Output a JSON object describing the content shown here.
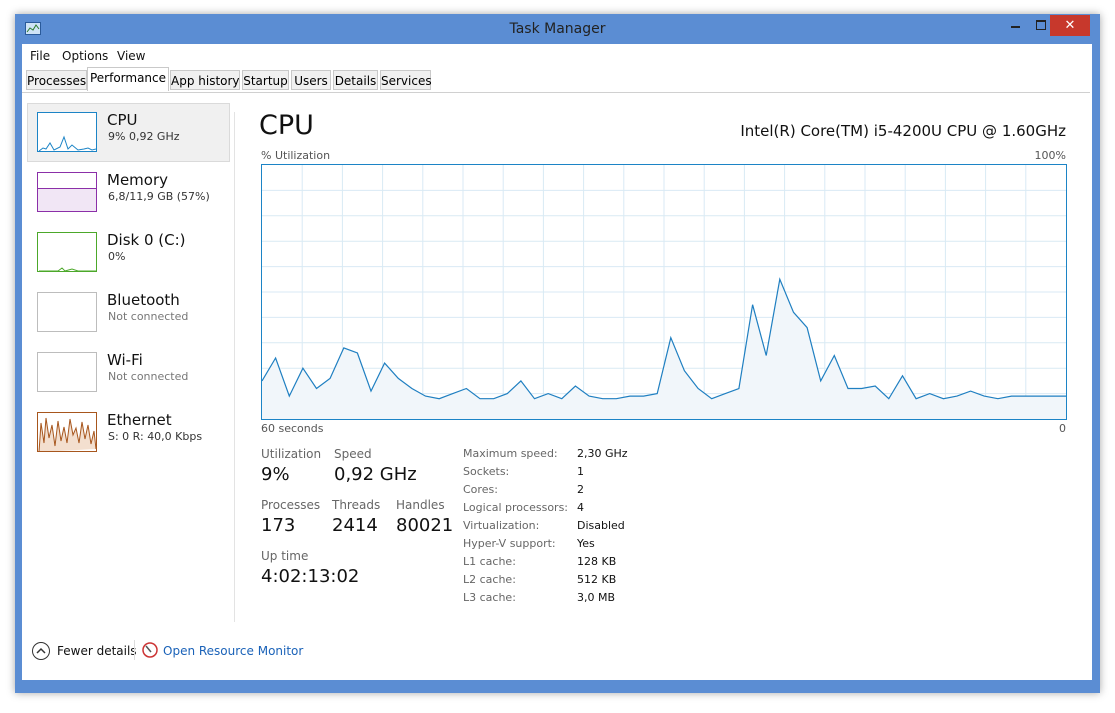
{
  "window": {
    "title": "Task Manager"
  },
  "menu": [
    "File",
    "Options",
    "View"
  ],
  "tabs": [
    "Processes",
    "Performance",
    "App history",
    "Startup",
    "Users",
    "Details",
    "Services"
  ],
  "selected_tab": 1,
  "sidebar": [
    {
      "name": "CPU",
      "detail": "9% 0,92 GHz"
    },
    {
      "name": "Memory",
      "detail": "6,8/11,9 GB (57%)"
    },
    {
      "name": "Disk 0 (C:)",
      "detail": "0%"
    },
    {
      "name": "Bluetooth",
      "detail": "Not connected"
    },
    {
      "name": "Wi-Fi",
      "detail": "Not connected"
    },
    {
      "name": "Ethernet",
      "detail": "S: 0 R: 40,0 Kbps"
    }
  ],
  "cpu": {
    "title": "CPU",
    "model": "Intel(R) Core(TM) i5-4200U CPU @ 1.60GHz",
    "graph": {
      "type": "line",
      "y_label": "% Utilization",
      "y_max_label": "100%",
      "x_start_label": "60 seconds",
      "x_end_label": "0",
      "ylim": [
        0,
        100
      ],
      "color": "#1f7fc1",
      "values": [
        15,
        24,
        9,
        20,
        12,
        16,
        28,
        26,
        11,
        22,
        16,
        12,
        9,
        8,
        10,
        12,
        8,
        8,
        10,
        15,
        8,
        10,
        8,
        13,
        9,
        8,
        8,
        9,
        9,
        10,
        32,
        19,
        12,
        8,
        10,
        12,
        45,
        25,
        55,
        42,
        36,
        15,
        25,
        12,
        12,
        13,
        8,
        17,
        8,
        10,
        8,
        9,
        11,
        9,
        8,
        9,
        9,
        9,
        9,
        9
      ]
    },
    "stats": [
      {
        "label": "Utilization",
        "value": "9%"
      },
      {
        "label": "Speed",
        "value": "0,92 GHz"
      },
      {
        "label": "Processes",
        "value": "173"
      },
      {
        "label": "Threads",
        "value": "2414"
      },
      {
        "label": "Handles",
        "value": "80021"
      },
      {
        "label": "Up time",
        "value": "4:02:13:02"
      }
    ],
    "details": [
      {
        "label": "Maximum speed:",
        "value": "2,30 GHz"
      },
      {
        "label": "Sockets:",
        "value": "1"
      },
      {
        "label": "Cores:",
        "value": "2"
      },
      {
        "label": "Logical processors:",
        "value": "4"
      },
      {
        "label": "Virtualization:",
        "value": "Disabled"
      },
      {
        "label": "Hyper-V support:",
        "value": "Yes"
      },
      {
        "label": "L1 cache:",
        "value": "128 KB"
      },
      {
        "label": "L2 cache:",
        "value": "512 KB"
      },
      {
        "label": "L3 cache:",
        "value": "3,0 MB"
      }
    ]
  },
  "footer": {
    "fewer_details": "Fewer details",
    "resource_monitor": "Open Resource Monitor"
  }
}
